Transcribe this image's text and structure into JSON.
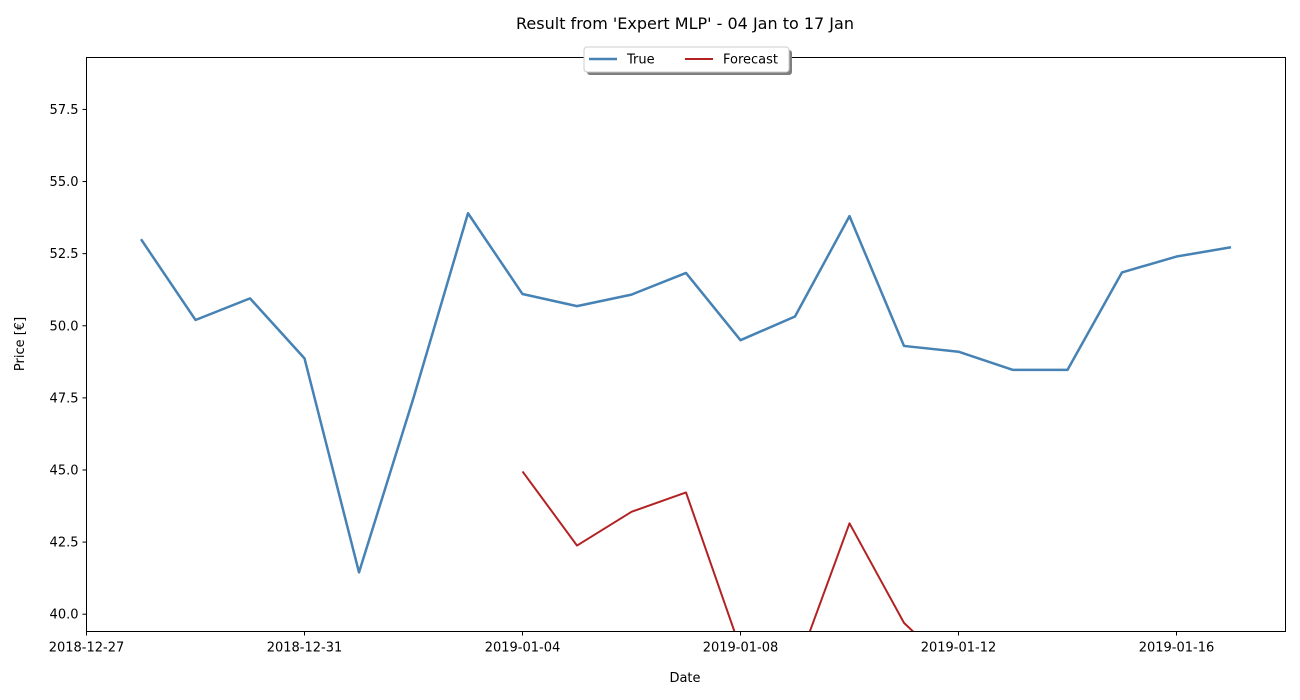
{
  "chart_data": {
    "type": "line",
    "title": "Result from 'Expert MLP' - 04 Jan to 17 Jan",
    "xlabel": "Date",
    "ylabel": "Price [€]",
    "x_axis_type": "date",
    "xlim": [
      "2018-12-27",
      "2019-01-18"
    ],
    "ylim": [
      39.4,
      59.3
    ],
    "x_ticks": [
      "2018-12-27",
      "2018-12-31",
      "2019-01-04",
      "2019-01-08",
      "2019-01-12",
      "2019-01-16"
    ],
    "y_ticks": [
      40.0,
      42.5,
      45.0,
      47.5,
      50.0,
      52.5,
      55.0,
      57.5
    ],
    "y_tick_labels": [
      "40.0",
      "42.5",
      "45.0",
      "47.5",
      "50.0",
      "52.5",
      "55.0",
      "57.5"
    ],
    "grid": false,
    "legend": {
      "placement": "top-center",
      "columns": 2,
      "shadow": true
    },
    "series": [
      {
        "name": "True",
        "color": "#4682b4",
        "x": [
          "2018-12-28",
          "2018-12-29",
          "2018-12-30",
          "2018-12-31",
          "2019-01-01",
          "2019-01-02",
          "2019-01-03",
          "2019-01-04",
          "2019-01-05",
          "2019-01-06",
          "2019-01-07",
          "2019-01-08",
          "2019-01-09",
          "2019-01-10",
          "2019-01-11",
          "2019-01-12",
          "2019-01-13",
          "2019-01-14",
          "2019-01-15",
          "2019-01-16",
          "2019-01-17"
        ],
        "values": [
          53.0,
          50.2,
          50.95,
          48.87,
          41.45,
          47.5,
          53.9,
          51.1,
          50.68,
          51.08,
          51.83,
          49.5,
          50.32,
          53.8,
          49.3,
          49.1,
          48.47,
          48.47,
          51.85,
          52.4,
          52.72
        ]
      },
      {
        "name": "Forecast",
        "color": "#b22222",
        "x": [
          "2019-01-04",
          "2019-01-05",
          "2019-01-06",
          "2019-01-07",
          "2019-01-08",
          "2019-01-09",
          "2019-01-10",
          "2019-01-11",
          "2019-01-12"
        ],
        "values": [
          44.95,
          42.38,
          43.55,
          44.22,
          38.8,
          38.0,
          43.15,
          39.7,
          37.9
        ]
      }
    ]
  }
}
